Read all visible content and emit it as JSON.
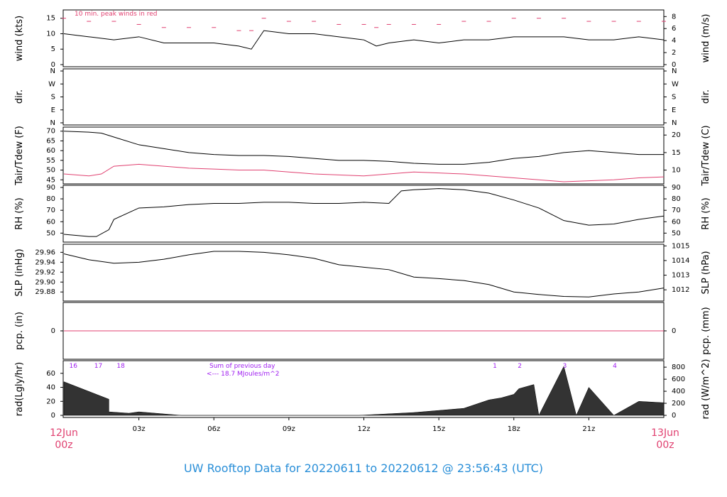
{
  "title": "UW Rooftop Data for 20220611  to  20220612 @ 23:56:43  (UTC)",
  "colors": {
    "accent": "#e04070",
    "title": "#2a8fd8",
    "purple": "#a020f0",
    "line": "#000000",
    "frame": "#000000"
  },
  "x_axis": {
    "start_label": [
      "12Jun",
      "00z"
    ],
    "end_label": [
      "13Jun",
      "00z"
    ],
    "ticks": [
      "03z",
      "06z",
      "09z",
      "12z",
      "15z",
      "18z",
      "21z"
    ],
    "tick_hours": [
      3,
      6,
      9,
      12,
      15,
      18,
      21
    ],
    "range_hours": [
      0,
      24
    ]
  },
  "panels": {
    "wind": {
      "ylabel_left": "wind (kts)",
      "ylabel_right": "wind (m/s)",
      "left_ticks": [
        "0",
        "5",
        "10",
        "15"
      ],
      "right_ticks": [
        "0",
        "2",
        "4",
        "6",
        "8"
      ],
      "ylim": [
        0,
        17
      ],
      "note": "10 min. peak winds in red"
    },
    "dir": {
      "ylabel_left": "dir.",
      "ylabel_right": "dir.",
      "left_ticks": [
        "N",
        "E",
        "S",
        "W",
        "N"
      ],
      "right_ticks": [
        "N",
        "E",
        "S",
        "W",
        "N"
      ]
    },
    "temp": {
      "ylabel_left": "Tair/Tdew (F)",
      "ylabel_right": "Tair/Tdew (C)",
      "left_ticks": [
        "45",
        "50",
        "55",
        "60",
        "65",
        "70"
      ],
      "right_ticks": [
        "10",
        "15",
        "20"
      ],
      "ylim": [
        44,
        71
      ]
    },
    "rh": {
      "ylabel_left": "RH (%)",
      "ylabel_right": "RH (%)",
      "left_ticks": [
        "50",
        "60",
        "70",
        "80",
        "90"
      ],
      "right_ticks": [
        "50",
        "60",
        "70",
        "80",
        "90"
      ],
      "ylim": [
        44,
        90
      ]
    },
    "slp": {
      "ylabel_left": "SLP (inHg)",
      "ylabel_right": "SLP (hPa)",
      "left_ticks": [
        "29.88",
        "29.90",
        "29.92",
        "29.94",
        "29.96"
      ],
      "right_ticks": [
        "1012",
        "1013",
        "1014",
        "1015"
      ],
      "ylim": [
        29.866,
        29.972
      ]
    },
    "pcp": {
      "ylabel_left": "pcp. (in)",
      "ylabel_right": "pcp. (mm)",
      "left_ticks": [
        "0"
      ],
      "right_ticks": [
        "0"
      ]
    },
    "rad": {
      "ylabel_left": "rad(Lgly/hr)",
      "ylabel_right": "rad (W/m^2)",
      "left_ticks": [
        "0",
        "20",
        "40",
        "60"
      ],
      "right_ticks": [
        "0",
        "200",
        "400",
        "600",
        "800"
      ],
      "ylim": [
        0,
        75
      ],
      "hour_labels_prev": [
        "16",
        "17",
        "18"
      ],
      "hour_labels": [
        "1",
        "2",
        "3",
        "4"
      ],
      "sum_line1": "Sum of previous day",
      "sum_line2": "<--- 18.7 MJoules/m^2"
    }
  },
  "chart_data": [
    {
      "type": "line",
      "panel": "wind",
      "x_hours": [
        0,
        1,
        2,
        3,
        4,
        5,
        6,
        7,
        7.5,
        8,
        9,
        10,
        11,
        12,
        12.5,
        13,
        14,
        15,
        16,
        17,
        18,
        19,
        20,
        21,
        22,
        23,
        24
      ],
      "series": [
        {
          "values": [
            10,
            9,
            8,
            9,
            7,
            7,
            7,
            6,
            5,
            11,
            10,
            10,
            9,
            8,
            6,
            7,
            8,
            7,
            8,
            8,
            9,
            9,
            9,
            8,
            8,
            9,
            8
          ]
        },
        {
          "values": [
            15,
            14,
            14,
            13,
            12,
            12,
            12,
            11,
            11,
            15,
            14,
            14,
            13,
            13,
            12,
            13,
            13,
            13,
            14,
            14,
            15,
            15,
            15,
            14,
            14,
            14,
            14
          ]
        }
      ]
    },
    {
      "type": "scatter",
      "panel": "dir",
      "note": "direction points not transcribed"
    },
    {
      "type": "line",
      "panel": "temp",
      "x_hours": [
        0,
        1,
        1.5,
        2,
        3,
        4,
        5,
        6,
        7,
        8,
        9,
        10,
        11,
        12,
        13,
        14,
        15,
        16,
        17,
        18,
        19,
        20,
        21,
        22,
        23,
        24
      ],
      "series": [
        {
          "values": [
            70,
            69.5,
            69,
            67,
            63,
            61,
            59,
            58,
            57.5,
            57.5,
            57,
            56,
            55,
            55,
            54.5,
            53.5,
            53,
            53,
            54,
            56,
            57,
            59,
            60,
            59,
            58,
            58
          ]
        },
        {
          "values": [
            48,
            47,
            48,
            52,
            53,
            52,
            51,
            50.5,
            50,
            50,
            49,
            48,
            47.5,
            47,
            48,
            49,
            48.5,
            48,
            47,
            46,
            45,
            44,
            44.5,
            45,
            46,
            46.5
          ]
        }
      ]
    },
    {
      "type": "line",
      "panel": "rh",
      "x_hours": [
        0,
        1,
        1.3,
        1.8,
        2,
        3,
        4,
        5,
        6,
        7,
        8,
        9,
        10,
        11,
        12,
        13,
        13.5,
        14,
        15,
        16,
        17,
        18,
        19,
        20,
        21,
        22,
        23,
        24
      ],
      "series": [
        {
          "values": [
            49,
            47,
            47,
            53,
            62,
            72,
            73,
            75,
            76,
            76,
            77,
            77,
            76,
            76,
            77,
            76,
            87,
            88,
            89,
            88,
            85,
            79,
            72,
            61,
            57,
            58,
            62,
            65
          ]
        }
      ]
    },
    {
      "type": "line",
      "panel": "slp",
      "x_hours": [
        0,
        1,
        2,
        3,
        4,
        5,
        6,
        7,
        8,
        9,
        10,
        11,
        12,
        13,
        14,
        15,
        16,
        17,
        18,
        19,
        20,
        21,
        22,
        23,
        24
      ],
      "series": [
        {
          "values": [
            29.957,
            29.945,
            29.938,
            29.94,
            29.946,
            29.955,
            29.962,
            29.962,
            29.96,
            29.955,
            29.948,
            29.935,
            29.93,
            29.925,
            29.91,
            29.907,
            29.903,
            29.895,
            29.88,
            29.875,
            29.871,
            29.87,
            29.876,
            29.88,
            29.888
          ]
        }
      ]
    },
    {
      "type": "line",
      "panel": "pcp",
      "x_hours": [
        0,
        24
      ],
      "series": [
        {
          "values": [
            0,
            0
          ]
        }
      ]
    },
    {
      "type": "area",
      "panel": "rad",
      "x_hours": [
        0,
        1.8,
        1.8,
        2.6,
        3,
        4,
        4.7,
        11.8,
        14,
        16,
        17,
        17.5,
        18,
        18.2,
        18.8,
        19,
        20,
        20.5,
        21,
        22,
        23,
        24
      ],
      "series": [
        {
          "values": [
            48,
            23,
            5,
            3,
            5,
            2,
            0,
            0,
            4,
            10,
            22,
            25,
            30,
            38,
            44,
            0,
            70,
            0,
            40,
            0,
            20,
            18
          ]
        }
      ]
    }
  ]
}
